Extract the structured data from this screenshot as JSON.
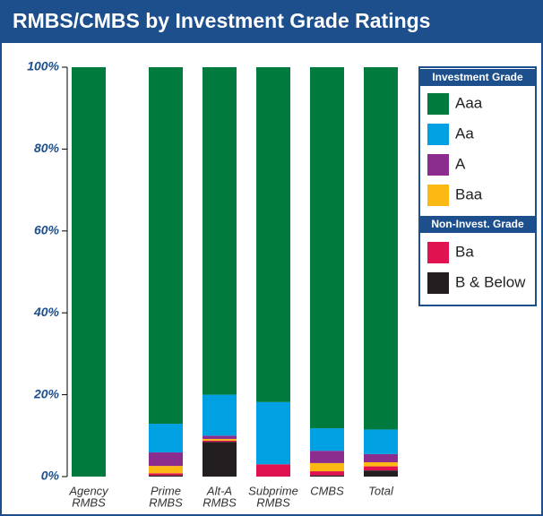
{
  "chart_data": {
    "type": "stacked_bar",
    "title": "RMBS/CMBS by Investment Grade Ratings",
    "categories": [
      [
        "Agency",
        "RMBS"
      ],
      [
        "Prime",
        "RMBS"
      ],
      [
        "Alt-A",
        "RMBS"
      ],
      [
        "Subprime",
        "RMBS"
      ],
      [
        "CMBS"
      ],
      [
        "Total"
      ]
    ],
    "series": [
      {
        "name": "Aaa",
        "color": "#007a3d",
        "values": [
          100,
          87.1,
          80,
          81.8,
          88.2,
          88.5
        ]
      },
      {
        "name": "Aa",
        "color": "#00a0e3",
        "values": [
          0,
          7,
          10,
          15.2,
          5.5,
          6
        ]
      },
      {
        "name": "A",
        "color": "#8b2c8f",
        "values": [
          0,
          3.3,
          0.8,
          0,
          3,
          2
        ]
      },
      {
        "name": "Baa",
        "color": "#fdb913",
        "values": [
          0,
          1.8,
          0.4,
          0,
          2,
          1
        ]
      },
      {
        "name": "Ba",
        "color": "#e0124f",
        "values": [
          0,
          0.5,
          0.3,
          3,
          1,
          1
        ]
      },
      {
        "name": "B & Below",
        "color": "#231f20",
        "values": [
          0,
          0.3,
          8.5,
          0,
          0.3,
          1.5
        ]
      }
    ],
    "legend_headers": [
      "Investment Grade",
      "Non-Invest. Grade"
    ],
    "ylim": [
      0,
      100
    ],
    "yticks": [
      {
        "value": 0,
        "label": "0%"
      },
      {
        "value": 20,
        "label": "20%"
      },
      {
        "value": 40,
        "label": "40%"
      },
      {
        "value": 60,
        "label": "60%"
      },
      {
        "value": 80,
        "label": "80%"
      },
      {
        "value": 100,
        "label": "100%"
      }
    ]
  }
}
